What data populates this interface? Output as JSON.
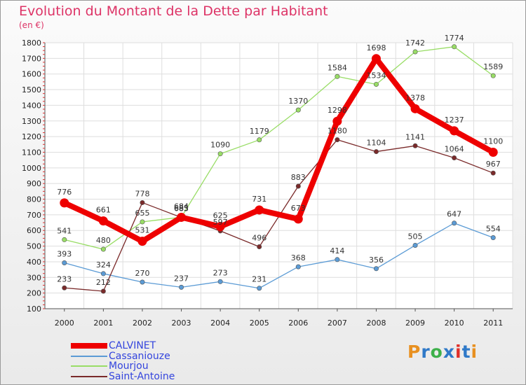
{
  "header": {
    "title": "Evolution du Montant de la Dette par Habitant",
    "unit": "(en €)"
  },
  "brand": {
    "text": "Proxiti",
    "colors": [
      "#e89020",
      "#2f79c8",
      "#3db04a",
      "#2f79c8",
      "#e0302a",
      "#2f79c8",
      "#e89020"
    ]
  },
  "chart_data": {
    "type": "line",
    "title": "Evolution du Montant de la Dette par Habitant",
    "subtitle": "(en €)",
    "xlabel": "",
    "ylabel": "",
    "x": [
      "2000",
      "2001",
      "2002",
      "2003",
      "2004",
      "2005",
      "2006",
      "2007",
      "2008",
      "2009",
      "2010",
      "2011"
    ],
    "ylim": [
      100,
      1800
    ],
    "yticks": [
      100,
      200,
      300,
      400,
      500,
      600,
      700,
      800,
      900,
      1000,
      1100,
      1200,
      1300,
      1400,
      1500,
      1600,
      1700,
      1800
    ],
    "grid": true,
    "legend_position": "bottom-left",
    "series": [
      {
        "name": "CALVINET",
        "color": "#ee0000",
        "emphasis": true,
        "values": [
          776,
          661,
          531,
          684,
          625,
          731,
          673,
          1298,
          1698,
          1378,
          1237,
          1100
        ]
      },
      {
        "name": "Cassaniouze",
        "color": "#5b9bd5",
        "emphasis": false,
        "values": [
          393,
          324,
          270,
          237,
          273,
          231,
          368,
          414,
          356,
          505,
          647,
          554
        ]
      },
      {
        "name": "Mourjou",
        "color": "#99dd66",
        "emphasis": false,
        "values": [
          541,
          480,
          655,
          685,
          1090,
          1179,
          1370,
          1584,
          1534,
          1742,
          1774,
          1589
        ]
      },
      {
        "name": "Saint-Antoine",
        "color": "#7a2a2a",
        "emphasis": false,
        "values": [
          233,
          212,
          778,
          683,
          597,
          496,
          883,
          1180,
          1104,
          1141,
          1064,
          967
        ]
      }
    ]
  }
}
